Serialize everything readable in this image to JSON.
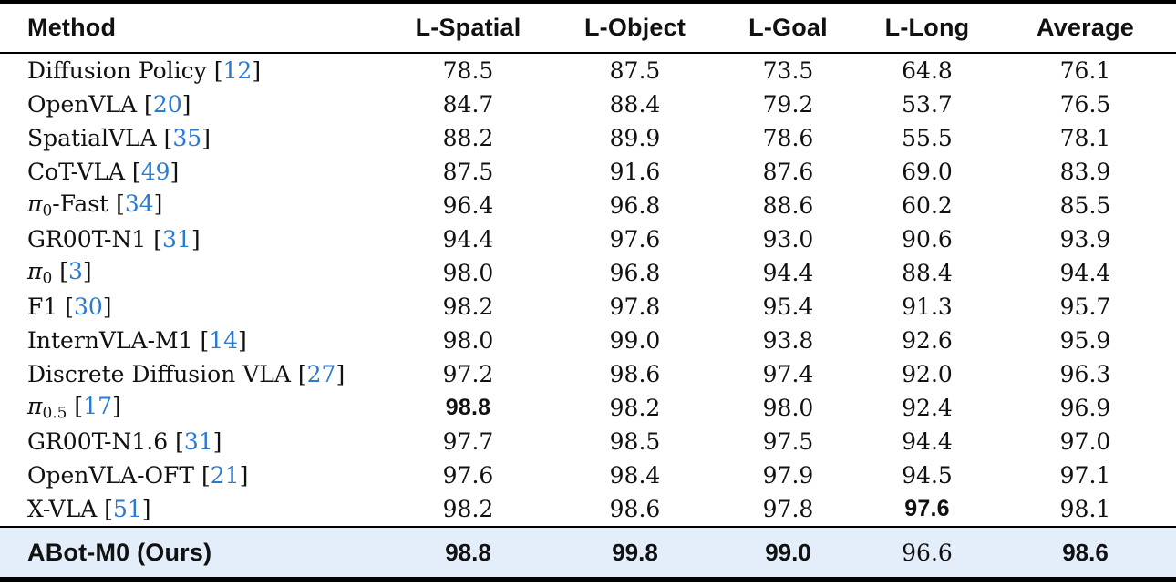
{
  "colors": {
    "citation_blue": "#2b7ad2",
    "highlight_bg": "#e4eefa",
    "text": "#111111",
    "rule": "#000000"
  },
  "table": {
    "columns": [
      "Method",
      "L-Spatial",
      "L-Object",
      "L-Goal",
      "L-Long",
      "Average"
    ],
    "rows": [
      {
        "parts": [
          [
            "Diffusion Policy",
            ""
          ]
        ],
        "cite": "12",
        "values": [
          "78.5",
          "87.5",
          "73.5",
          "64.8",
          "76.1"
        ],
        "bold": [
          false,
          false,
          false,
          false,
          false
        ]
      },
      {
        "parts": [
          [
            "OpenVLA",
            ""
          ]
        ],
        "cite": "20",
        "values": [
          "84.7",
          "88.4",
          "79.2",
          "53.7",
          "76.5"
        ],
        "bold": [
          false,
          false,
          false,
          false,
          false
        ]
      },
      {
        "parts": [
          [
            "SpatialVLA",
            ""
          ]
        ],
        "cite": "35",
        "values": [
          "88.2",
          "89.9",
          "78.6",
          "55.5",
          "78.1"
        ],
        "bold": [
          false,
          false,
          false,
          false,
          false
        ]
      },
      {
        "parts": [
          [
            "CoT-VLA",
            ""
          ]
        ],
        "cite": "49",
        "values": [
          "87.5",
          "91.6",
          "87.6",
          "69.0",
          "83.9"
        ],
        "bold": [
          false,
          false,
          false,
          false,
          false
        ]
      },
      {
        "parts": [
          [
            "π",
            "pi"
          ],
          [
            "0",
            "sub"
          ],
          [
            "-Fast",
            ""
          ]
        ],
        "cite": "34",
        "values": [
          "96.4",
          "96.8",
          "88.6",
          "60.2",
          "85.5"
        ],
        "bold": [
          false,
          false,
          false,
          false,
          false
        ]
      },
      {
        "parts": [
          [
            "GR00T-N1",
            ""
          ]
        ],
        "cite": "31",
        "values": [
          "94.4",
          "97.6",
          "93.0",
          "90.6",
          "93.9"
        ],
        "bold": [
          false,
          false,
          false,
          false,
          false
        ]
      },
      {
        "parts": [
          [
            "π",
            "pi"
          ],
          [
            "0",
            "sub"
          ]
        ],
        "cite": "3",
        "values": [
          "98.0",
          "96.8",
          "94.4",
          "88.4",
          "94.4"
        ],
        "bold": [
          false,
          false,
          false,
          false,
          false
        ]
      },
      {
        "parts": [
          [
            "F1",
            ""
          ]
        ],
        "cite": "30",
        "values": [
          "98.2",
          "97.8",
          "95.4",
          "91.3",
          "95.7"
        ],
        "bold": [
          false,
          false,
          false,
          false,
          false
        ]
      },
      {
        "parts": [
          [
            "InternVLA-M1",
            ""
          ]
        ],
        "cite": "14",
        "values": [
          "98.0",
          "99.0",
          "93.8",
          "92.6",
          "95.9"
        ],
        "bold": [
          false,
          false,
          false,
          false,
          false
        ]
      },
      {
        "parts": [
          [
            "Discrete Diffusion VLA",
            ""
          ]
        ],
        "cite": "27",
        "values": [
          "97.2",
          "98.6",
          "97.4",
          "92.0",
          "96.3"
        ],
        "bold": [
          false,
          false,
          false,
          false,
          false
        ]
      },
      {
        "parts": [
          [
            "π",
            "pi"
          ],
          [
            "0.5",
            "sub"
          ]
        ],
        "cite": "17",
        "values": [
          "98.8",
          "98.2",
          "98.0",
          "92.4",
          "96.9"
        ],
        "bold": [
          true,
          false,
          false,
          false,
          false
        ]
      },
      {
        "parts": [
          [
            "GR00T-N1.6",
            ""
          ]
        ],
        "cite": "31",
        "values": [
          "97.7",
          "98.5",
          "97.5",
          "94.4",
          "97.0"
        ],
        "bold": [
          false,
          false,
          false,
          false,
          false
        ]
      },
      {
        "parts": [
          [
            "OpenVLA-OFT",
            ""
          ]
        ],
        "cite": "21",
        "values": [
          "97.6",
          "98.4",
          "97.9",
          "94.5",
          "97.1"
        ],
        "bold": [
          false,
          false,
          false,
          false,
          false
        ]
      },
      {
        "parts": [
          [
            "X-VLA",
            ""
          ]
        ],
        "cite": "51",
        "values": [
          "98.2",
          "98.6",
          "97.8",
          "97.6",
          "98.1"
        ],
        "bold": [
          false,
          false,
          false,
          true,
          false
        ]
      }
    ],
    "our_row": {
      "method": "ABot-M0 (Ours)",
      "values": [
        "98.8",
        "99.8",
        "99.0",
        "96.6",
        "98.6"
      ],
      "bold": [
        true,
        true,
        true,
        false,
        true
      ]
    }
  }
}
